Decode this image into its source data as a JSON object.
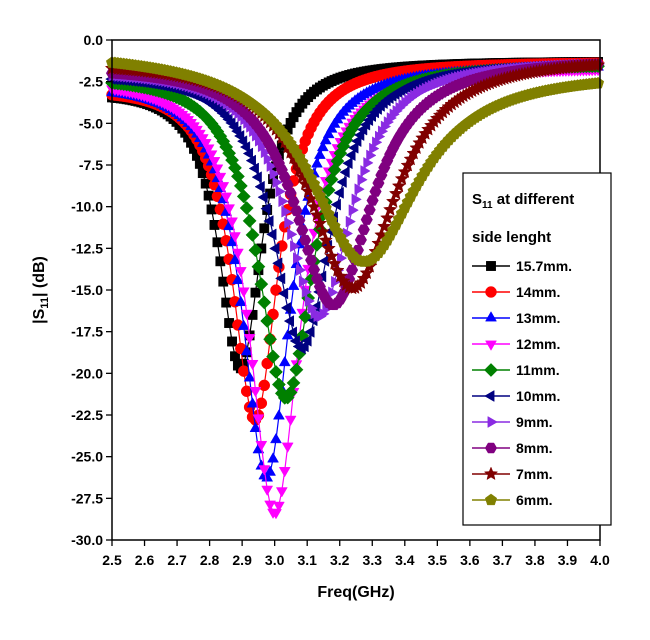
{
  "chart_data": {
    "type": "line",
    "title": "",
    "xlabel": "Freq(GHz)",
    "ylabel_main": "|S",
    "ylabel_sub": "11",
    "ylabel_rest": "| (dB)",
    "xlim": [
      2.5,
      4.0
    ],
    "ylim": [
      -30.0,
      0.0
    ],
    "x_ticks": [
      "2.5",
      "2.6",
      "2.7",
      "2.8",
      "2.9",
      "3.0",
      "3.1",
      "3.2",
      "3.3",
      "3.4",
      "3.5",
      "3.6",
      "3.7",
      "3.8",
      "3.9",
      "4.0"
    ],
    "y_ticks": [
      "0.0",
      "-2.5",
      "-5.0",
      "-7.5",
      "-10.0",
      "-12.5",
      "-15.0",
      "-17.5",
      "-20.0",
      "-22.5",
      "-25.0",
      "-27.5",
      "-30.0"
    ],
    "grid": false,
    "legend_position": "right",
    "legend": {
      "title_main": "S",
      "title_sub": "11",
      "title_line1_rest": " at different",
      "title_line2": "side lenght"
    },
    "series": [
      {
        "name": "15.7mm.",
        "color": "#000000",
        "marker": "square",
        "f0": 2.895,
        "min": -19.7,
        "w": 0.085,
        "start": -2.9,
        "end": -1.25
      },
      {
        "name": "14mm.",
        "color": "#ff0000",
        "marker": "circle",
        "f0": 2.94,
        "min": -22.8,
        "w": 0.09,
        "start": -2.7,
        "end": -1.3
      },
      {
        "name": "13mm.",
        "color": "#0000ff",
        "marker": "triangle-up",
        "f0": 2.975,
        "min": -26.3,
        "w": 0.095,
        "start": -2.5,
        "end": -1.5
      },
      {
        "name": "12mm.",
        "color": "#ff00ff",
        "marker": "triangle-down",
        "f0": 3.0,
        "min": -28.4,
        "w": 0.1,
        "start": -2.2,
        "end": -1.6
      },
      {
        "name": "11mm.",
        "color": "#008000",
        "marker": "diamond",
        "f0": 3.035,
        "min": -21.5,
        "w": 0.11,
        "start": -2.0,
        "end": -1.4
      },
      {
        "name": "10mm.",
        "color": "#000080",
        "marker": "triangle-left",
        "f0": 3.085,
        "min": -18.5,
        "w": 0.115,
        "start": -1.9,
        "end": -1.3
      },
      {
        "name": "9mm.",
        "color": "#8a2be2",
        "marker": "triangle-right",
        "f0": 3.135,
        "min": -16.6,
        "w": 0.13,
        "start": -1.7,
        "end": -1.2
      },
      {
        "name": "8mm.",
        "color": "#800080",
        "marker": "hexagon",
        "f0": 3.18,
        "min": -15.9,
        "w": 0.15,
        "start": -1.5,
        "end": -1.1
      },
      {
        "name": "7mm.",
        "color": "#800000",
        "marker": "star",
        "f0": 3.24,
        "min": -14.9,
        "w": 0.17,
        "start": -1.2,
        "end": -1.0
      },
      {
        "name": "6mm.",
        "color": "#808000",
        "marker": "pentagon",
        "f0": 3.275,
        "min": -13.3,
        "w": 0.21,
        "start": -0.7,
        "end": -1.9
      }
    ]
  }
}
